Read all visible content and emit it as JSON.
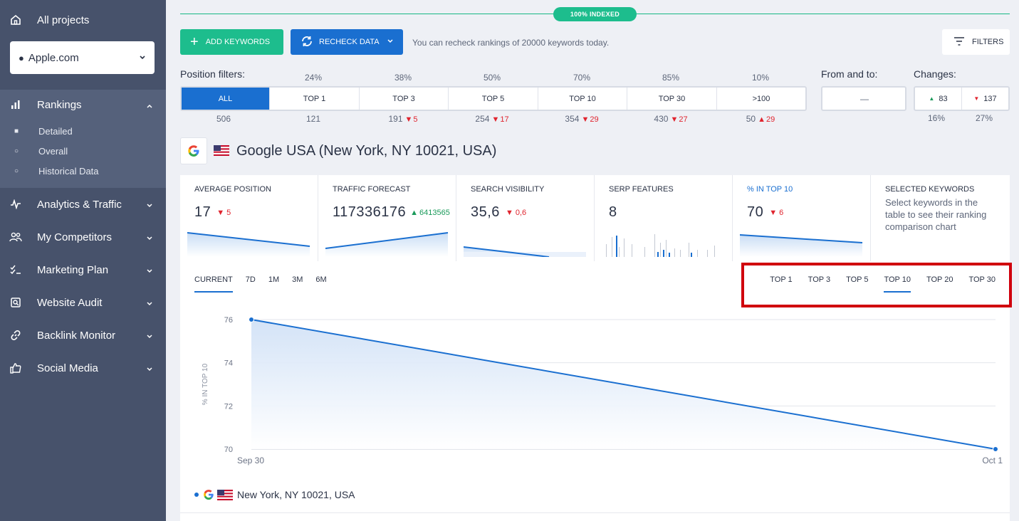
{
  "sidebar": {
    "all_projects": "All projects",
    "project": "Apple.com",
    "rankings": "Rankings",
    "rankings_sub": [
      "Detailed",
      "Overall",
      "Historical Data"
    ],
    "items": [
      "Analytics & Traffic",
      "My Competitors",
      "Marketing Plan",
      "Website Audit",
      "Backlink Monitor",
      "Social Media"
    ]
  },
  "header": {
    "indexed_badge": "100% INDEXED",
    "add_keywords": "ADD KEYWORDS",
    "recheck_data": "RECHECK DATA",
    "recheck_note": "You can recheck rankings of 20000 keywords today.",
    "filters": "FILTERS"
  },
  "position_filters": {
    "label": "Position filters:",
    "segments": [
      {
        "label": "ALL",
        "pct": "",
        "count": "506",
        "delta": ""
      },
      {
        "label": "TOP 1",
        "pct": "24%",
        "count": "121",
        "delta": ""
      },
      {
        "label": "TOP 3",
        "pct": "38%",
        "count": "191",
        "delta": "5"
      },
      {
        "label": "TOP 5",
        "pct": "50%",
        "count": "254",
        "delta": "17"
      },
      {
        "label": "TOP 10",
        "pct": "70%",
        "count": "354",
        "delta": "29"
      },
      {
        "label": "TOP 30",
        "pct": "85%",
        "count": "430",
        "delta": "27"
      },
      {
        "label": ">100",
        "pct": "10%",
        "count": "50",
        "delta": "29"
      }
    ],
    "from_to_label": "From and to:",
    "from_to_value": "—",
    "changes_label": "Changes:",
    "changes_up": "83",
    "changes_down": "137",
    "changes_up_pct": "16%",
    "changes_down_pct": "27%"
  },
  "engine": {
    "title": "Google USA (New York, NY 10021, USA)"
  },
  "cards": {
    "avg_position": {
      "title": "AVERAGE POSITION",
      "value": "17",
      "delta": "5"
    },
    "traffic": {
      "title": "TRAFFIC FORECAST",
      "value": "117336176",
      "delta": "6413565"
    },
    "visibility": {
      "title": "SEARCH VISIBILITY",
      "value": "35,6",
      "delta": "0,6"
    },
    "serp": {
      "title": "SERP FEATURES",
      "value": "8"
    },
    "top10": {
      "title": "% IN TOP 10",
      "value": "70",
      "delta": "6"
    },
    "selected": {
      "title": "SELECTED KEYWORDS",
      "desc": "Select keywords in the table to see their ranking comparison chart"
    }
  },
  "chart_tabs": {
    "periods": [
      "CURRENT",
      "7D",
      "1M",
      "3M",
      "6M"
    ],
    "tops": [
      "TOP 1",
      "TOP 3",
      "TOP 5",
      "TOP 10",
      "TOP 20",
      "TOP 30"
    ]
  },
  "legend": "New York, NY 10021, USA",
  "chart_data": {
    "type": "area",
    "x": [
      "Sep 30",
      "Oct 1"
    ],
    "series": [
      {
        "name": "New York, NY 10021, USA",
        "values": [
          76,
          70
        ]
      }
    ],
    "ylabel": "% IN TOP 10",
    "yticks": [
      70,
      72,
      74,
      76
    ],
    "ylim": [
      70,
      76
    ],
    "grid": true,
    "colors": {
      "line": "#1a6fd0"
    }
  }
}
